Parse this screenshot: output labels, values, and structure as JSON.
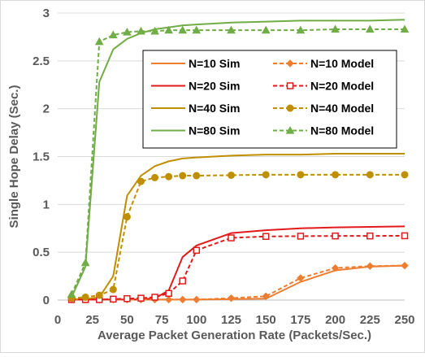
{
  "chart_data": {
    "type": "line",
    "title": "",
    "xlabel": "Average Packet Generation Rate (Packets/Sec.)",
    "ylabel": "Single Hope Delay (Sec.)",
    "xlim": [
      0,
      250
    ],
    "ylim": [
      0,
      3
    ],
    "xticks": [
      0,
      25,
      50,
      75,
      100,
      125,
      150,
      175,
      200,
      225,
      250
    ],
    "yticks": [
      0,
      0.5,
      1,
      1.5,
      2,
      2.5,
      3
    ],
    "ytick_labels": [
      "0",
      "0.5",
      "1",
      "1.5",
      "2",
      "2.5",
      "3"
    ],
    "grid": "horizontal",
    "legend_position": "inside-right, two columns",
    "series": [
      {
        "name": "N=10 Sim",
        "color": "#ED7D31",
        "dash": "solid",
        "marker": "none",
        "x": [
          10,
          20,
          30,
          40,
          50,
          60,
          70,
          80,
          90,
          100,
          125,
          150,
          175,
          200,
          225,
          250
        ],
        "y": [
          0.005,
          0.005,
          0.005,
          0.005,
          0.005,
          0.005,
          0.005,
          0.005,
          0.005,
          0.005,
          0.01,
          0.015,
          0.19,
          0.31,
          0.35,
          0.36
        ]
      },
      {
        "name": "N=20 Sim",
        "color": "#E31A1C",
        "dash": "solid",
        "marker": "none",
        "x": [
          10,
          20,
          30,
          40,
          50,
          60,
          70,
          80,
          90,
          100,
          125,
          150,
          175,
          200,
          225,
          250
        ],
        "y": [
          0.005,
          0.005,
          0.005,
          0.005,
          0.005,
          0.005,
          0.02,
          0.1,
          0.45,
          0.57,
          0.7,
          0.73,
          0.75,
          0.76,
          0.765,
          0.77
        ]
      },
      {
        "name": "N=40 Sim",
        "color": "#BF8F00",
        "dash": "solid",
        "marker": "none",
        "x": [
          10,
          20,
          30,
          40,
          50,
          60,
          70,
          80,
          90,
          100,
          125,
          150,
          175,
          200,
          225,
          250
        ],
        "y": [
          0.01,
          0.01,
          0.03,
          0.25,
          1.09,
          1.3,
          1.4,
          1.45,
          1.48,
          1.49,
          1.51,
          1.52,
          1.52,
          1.53,
          1.53,
          1.53
        ]
      },
      {
        "name": "N=80 Sim",
        "color": "#70AD47",
        "dash": "solid",
        "marker": "none",
        "x": [
          10,
          20,
          30,
          40,
          50,
          60,
          70,
          80,
          90,
          100,
          125,
          150,
          175,
          200,
          225,
          250
        ],
        "y": [
          0.03,
          0.35,
          2.28,
          2.62,
          2.73,
          2.79,
          2.83,
          2.85,
          2.87,
          2.88,
          2.9,
          2.91,
          2.92,
          2.92,
          2.92,
          2.93
        ]
      },
      {
        "name": "N=10 Model",
        "color": "#ED7D31",
        "dash": "dashed",
        "marker": "diamond",
        "x": [
          10,
          20,
          30,
          40,
          50,
          60,
          70,
          80,
          90,
          100,
          125,
          150,
          175,
          200,
          225,
          250
        ],
        "y": [
          0.005,
          0.005,
          0.005,
          0.005,
          0.005,
          0.005,
          0.005,
          0.005,
          0.005,
          0.005,
          0.02,
          0.04,
          0.23,
          0.335,
          0.355,
          0.36
        ]
      },
      {
        "name": "N=20 Model",
        "color": "#E31A1C",
        "dash": "dashed",
        "marker": "square-open",
        "x": [
          10,
          20,
          30,
          40,
          50,
          60,
          70,
          80,
          90,
          100,
          125,
          150,
          175,
          200,
          225,
          250
        ],
        "y": [
          0.005,
          0.005,
          0.005,
          0.01,
          0.015,
          0.02,
          0.03,
          0.07,
          0.2,
          0.52,
          0.65,
          0.665,
          0.668,
          0.67,
          0.67,
          0.672
        ]
      },
      {
        "name": "N=40 Model",
        "color": "#BF8F00",
        "dash": "dashed",
        "marker": "circle",
        "x": [
          10,
          20,
          30,
          40,
          50,
          60,
          70,
          80,
          90,
          100,
          125,
          150,
          175,
          200,
          225,
          250
        ],
        "y": [
          0.02,
          0.03,
          0.05,
          0.11,
          0.87,
          1.24,
          1.28,
          1.29,
          1.3,
          1.3,
          1.305,
          1.31,
          1.31,
          1.31,
          1.31,
          1.31
        ]
      },
      {
        "name": "N=80 Model",
        "color": "#70AD47",
        "dash": "dashed",
        "marker": "triangle",
        "x": [
          10,
          20,
          30,
          40,
          50,
          60,
          70,
          80,
          90,
          100,
          125,
          150,
          175,
          200,
          225,
          250
        ],
        "y": [
          0.06,
          0.39,
          2.7,
          2.77,
          2.8,
          2.81,
          2.81,
          2.82,
          2.82,
          2.82,
          2.82,
          2.82,
          2.82,
          2.83,
          2.83,
          2.83
        ]
      }
    ],
    "legend": {
      "rows": [
        [
          "N=10 Sim",
          "N=10 Model"
        ],
        [
          "N=20 Sim",
          "N=20 Model"
        ],
        [
          "N=40 Sim",
          "N=40 Model"
        ],
        [
          "N=80 Sim",
          "N=80 Model"
        ]
      ]
    }
  }
}
